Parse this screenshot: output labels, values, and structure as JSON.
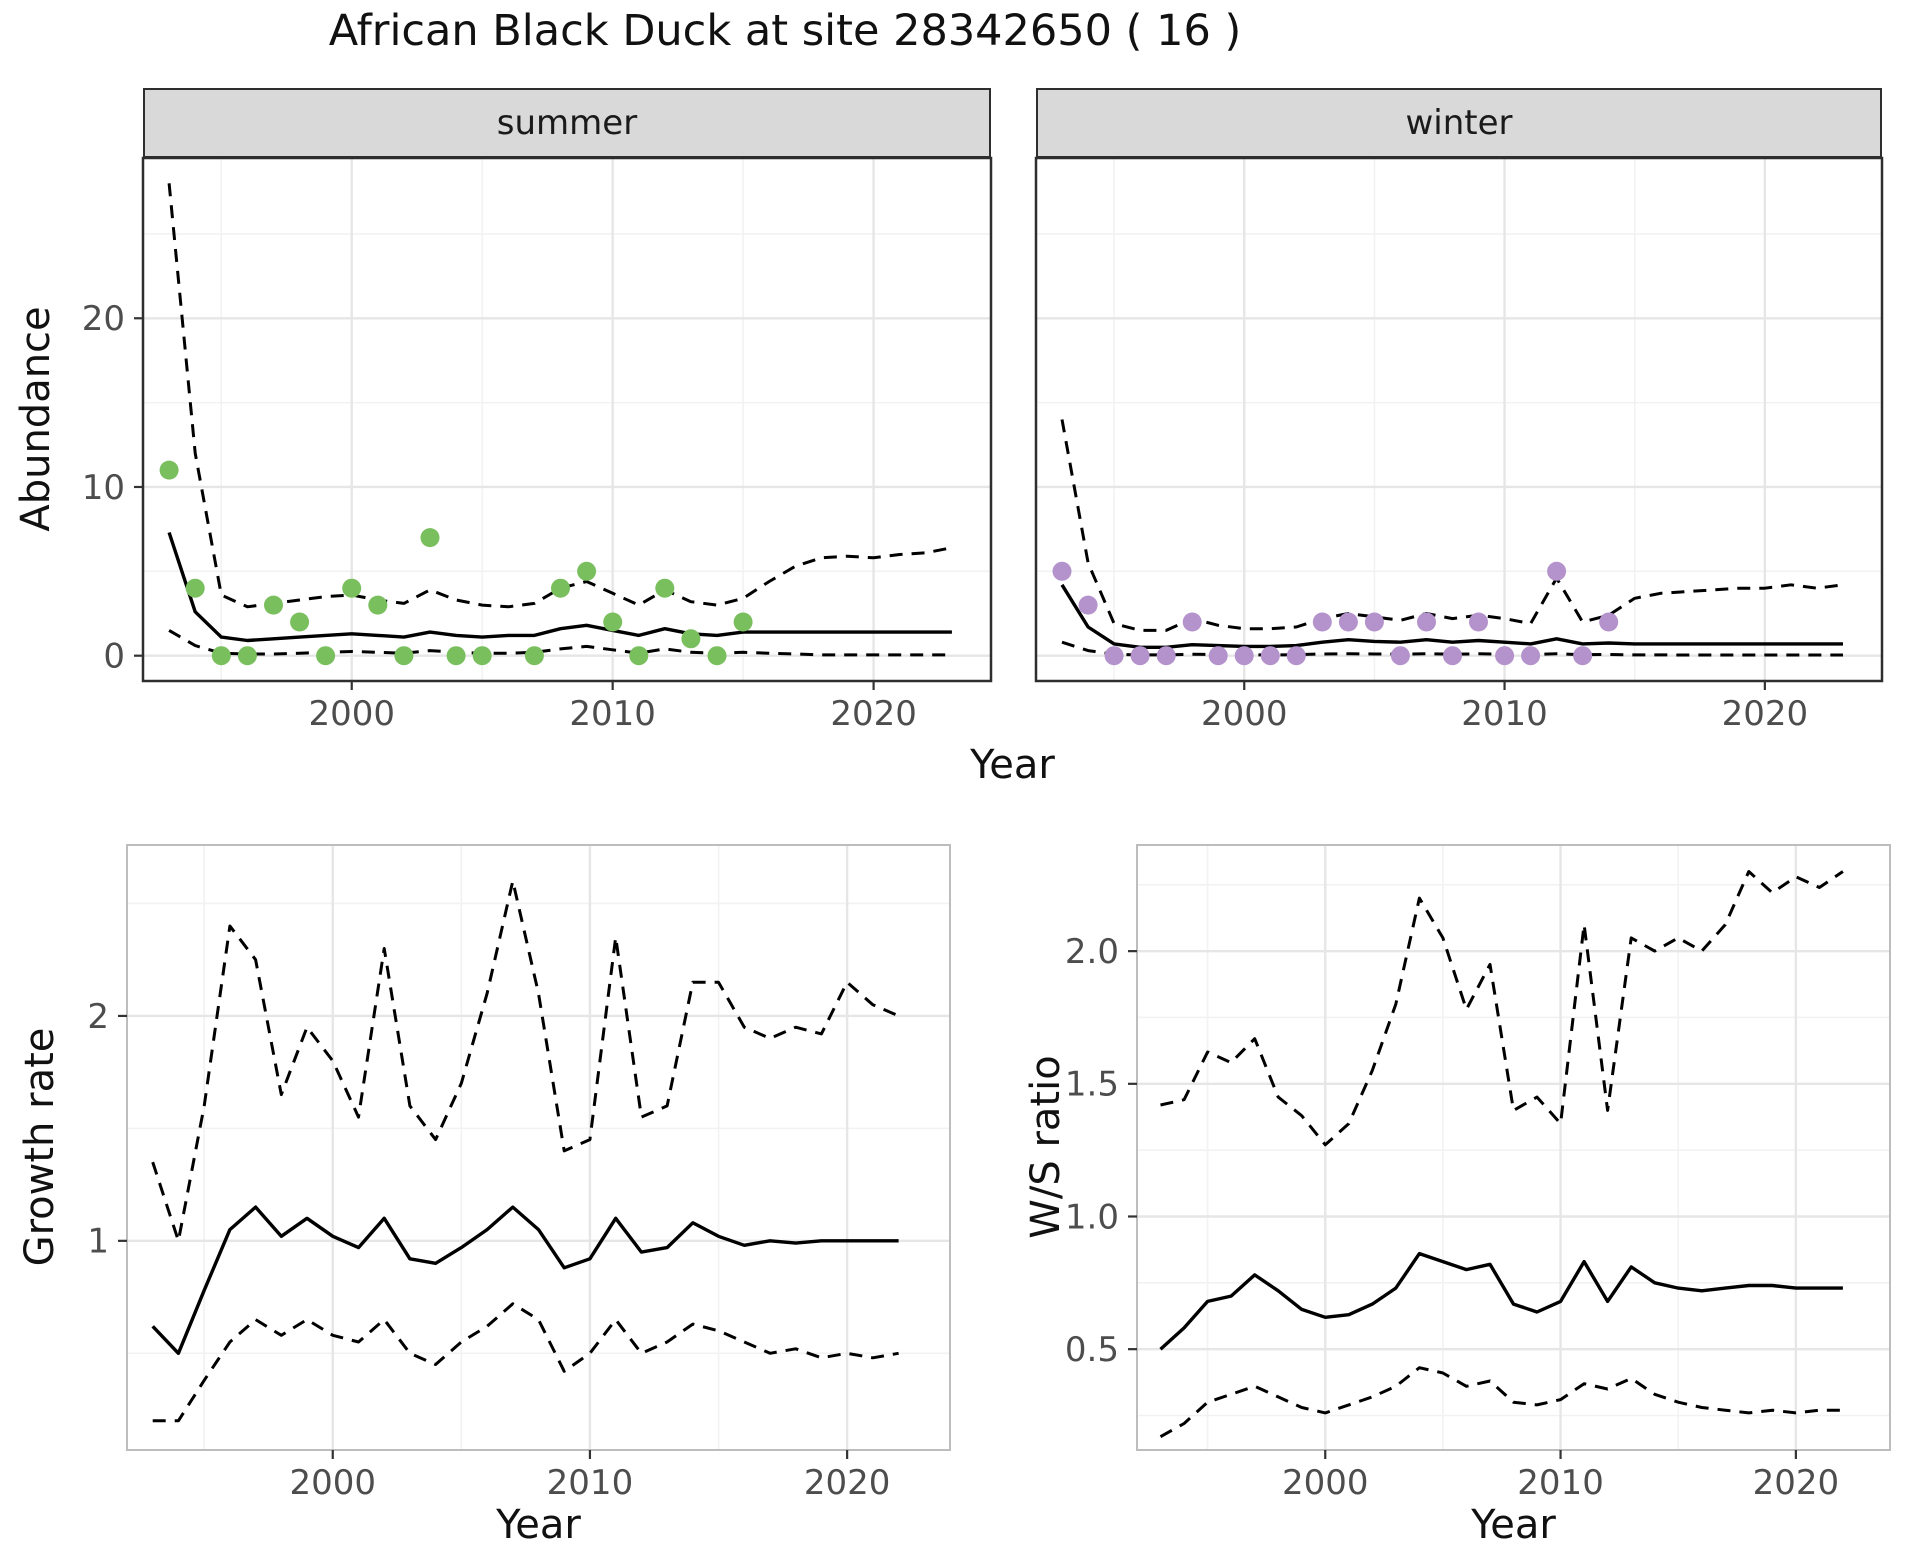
{
  "title": "African Black Duck at site 28342650 ( 16 )",
  "colors": {
    "summer_points": "#7abf5e",
    "winter_points": "#b492cc",
    "line": "#000000",
    "strip_bg": "#d9d9d9",
    "grid_major": "#e6e6e6",
    "grid_minor": "#f2f2f2",
    "tick_text": "#4d4d4d"
  },
  "chart_data": [
    {
      "id": "abundance-summer",
      "type": "scatter",
      "facet": "summer",
      "xlabel": "Year",
      "ylabel": "Abundance",
      "xlim": [
        1992,
        2024.5
      ],
      "ylim": [
        -1.5,
        29.5
      ],
      "xticks": [
        2000,
        2010,
        2020
      ],
      "xtick_labels": [
        "2000",
        "2010",
        "2020"
      ],
      "yticks": [
        0,
        10,
        20
      ],
      "ytick_labels": [
        "0",
        "10",
        "20"
      ],
      "points": {
        "name": "observed-count-summer",
        "color": "#7abf5e",
        "x": [
          1993,
          1994,
          1995,
          1996,
          1997,
          1998,
          1999,
          2000,
          2001,
          2002,
          2003,
          2004,
          2005,
          2007,
          2008,
          2009,
          2010,
          2011,
          2012,
          2013,
          2014,
          2015
        ],
        "y": [
          11,
          4,
          0,
          0,
          3,
          2,
          0,
          4,
          3,
          0,
          7,
          0,
          0,
          0,
          4,
          5,
          2,
          0,
          4,
          1,
          0,
          2
        ]
      },
      "line_x": [
        1993,
        1994,
        1995,
        1996,
        1997,
        1998,
        1999,
        2000,
        2001,
        2002,
        2003,
        2004,
        2005,
        2006,
        2007,
        2008,
        2009,
        2010,
        2011,
        2012,
        2013,
        2014,
        2015,
        2016,
        2017,
        2018,
        2019,
        2020,
        2021,
        2022,
        2023
      ],
      "lines": [
        {
          "name": "model-fit",
          "dash": false,
          "y": [
            7.3,
            2.6,
            1.1,
            0.9,
            1.0,
            1.1,
            1.2,
            1.3,
            1.2,
            1.1,
            1.4,
            1.2,
            1.1,
            1.2,
            1.2,
            1.6,
            1.8,
            1.5,
            1.2,
            1.6,
            1.3,
            1.2,
            1.4,
            1.4,
            1.4,
            1.4,
            1.4,
            1.4,
            1.4,
            1.4,
            1.4
          ]
        },
        {
          "name": "upper-credible-interval",
          "dash": true,
          "y": [
            28,
            12,
            3.6,
            2.9,
            3.1,
            3.3,
            3.5,
            3.6,
            3.3,
            3.1,
            3.9,
            3.3,
            3.0,
            2.9,
            3.1,
            4.0,
            4.4,
            3.7,
            3.0,
            3.9,
            3.2,
            3.0,
            3.4,
            4.4,
            5.3,
            5.8,
            5.9,
            5.8,
            6.0,
            6.1,
            6.4
          ]
        },
        {
          "name": "lower-credible-interval",
          "dash": true,
          "y": [
            1.5,
            0.6,
            0.15,
            0.1,
            0.1,
            0.15,
            0.2,
            0.25,
            0.2,
            0.15,
            0.3,
            0.2,
            0.15,
            0.15,
            0.2,
            0.4,
            0.55,
            0.35,
            0.15,
            0.4,
            0.2,
            0.15,
            0.2,
            0.15,
            0.1,
            0.05,
            0.05,
            0.05,
            0.05,
            0.05,
            0.05
          ]
        }
      ]
    },
    {
      "id": "abundance-winter",
      "type": "scatter",
      "facet": "winter",
      "xlabel": "Year",
      "ylabel": "Abundance",
      "xlim": [
        1992,
        2024.5
      ],
      "ylim": [
        -1.5,
        29.5
      ],
      "xticks": [
        2000,
        2010,
        2020
      ],
      "xtick_labels": [
        "2000",
        "2010",
        "2020"
      ],
      "yticks": [
        0,
        10,
        20
      ],
      "ytick_labels": [
        "0",
        "10",
        "20"
      ],
      "points": {
        "name": "observed-count-winter",
        "color": "#b492cc",
        "x": [
          1993,
          1994,
          1995,
          1996,
          1997,
          1998,
          1999,
          2000,
          2001,
          2002,
          2003,
          2004,
          2005,
          2006,
          2007,
          2008,
          2009,
          2010,
          2011,
          2012,
          2013,
          2014
        ],
        "y": [
          5,
          3,
          0,
          0,
          0,
          2,
          0,
          0,
          0,
          0,
          2,
          2,
          2,
          0,
          2,
          0,
          2,
          0,
          0,
          5,
          0,
          2
        ]
      },
      "line_x": [
        1993,
        1994,
        1995,
        1996,
        1997,
        1998,
        1999,
        2000,
        2001,
        2002,
        2003,
        2004,
        2005,
        2006,
        2007,
        2008,
        2009,
        2010,
        2011,
        2012,
        2013,
        2014,
        2015,
        2016,
        2017,
        2018,
        2019,
        2020,
        2021,
        2022,
        2023
      ],
      "lines": [
        {
          "name": "model-fit",
          "dash": false,
          "y": [
            4.2,
            1.7,
            0.7,
            0.5,
            0.5,
            0.65,
            0.6,
            0.55,
            0.55,
            0.6,
            0.8,
            0.95,
            0.85,
            0.8,
            0.95,
            0.8,
            0.9,
            0.8,
            0.7,
            1.0,
            0.7,
            0.75,
            0.7,
            0.7,
            0.7,
            0.7,
            0.7,
            0.7,
            0.7,
            0.7,
            0.7
          ]
        },
        {
          "name": "upper-credible-interval",
          "dash": true,
          "y": [
            14,
            5.5,
            1.9,
            1.5,
            1.5,
            2.2,
            1.8,
            1.6,
            1.6,
            1.7,
            2.2,
            2.5,
            2.3,
            2.1,
            2.5,
            2.2,
            2.4,
            2.2,
            1.9,
            4.6,
            2.0,
            2.4,
            3.4,
            3.7,
            3.8,
            3.9,
            4.0,
            4.0,
            4.2,
            4.0,
            4.2
          ]
        },
        {
          "name": "lower-credible-interval",
          "dash": true,
          "y": [
            0.8,
            0.3,
            0.08,
            0.05,
            0.05,
            0.08,
            0.07,
            0.05,
            0.05,
            0.06,
            0.1,
            0.12,
            0.1,
            0.09,
            0.12,
            0.09,
            0.11,
            0.09,
            0.07,
            0.12,
            0.06,
            0.07,
            0.05,
            0.05,
            0.04,
            0.04,
            0.04,
            0.04,
            0.04,
            0.04,
            0.04
          ]
        }
      ]
    },
    {
      "id": "growth-rate",
      "type": "line",
      "xlabel": "Year",
      "ylabel": "Growth rate",
      "xlim": [
        1992,
        2024
      ],
      "ylim": [
        0.07,
        2.76
      ],
      "xticks": [
        2000,
        2010,
        2020
      ],
      "xtick_labels": [
        "2000",
        "2010",
        "2020"
      ],
      "yticks": [
        1,
        2
      ],
      "ytick_labels": [
        "1",
        "2"
      ],
      "line_x": [
        1993,
        1994,
        1995,
        1996,
        1997,
        1998,
        1999,
        2000,
        2001,
        2002,
        2003,
        2004,
        2005,
        2006,
        2007,
        2008,
        2009,
        2010,
        2011,
        2012,
        2013,
        2014,
        2015,
        2016,
        2017,
        2018,
        2019,
        2020,
        2021,
        2022
      ],
      "lines": [
        {
          "name": "growth-rate-fit",
          "dash": false,
          "y": [
            0.62,
            0.5,
            0.78,
            1.05,
            1.15,
            1.02,
            1.1,
            1.02,
            0.97,
            1.1,
            0.92,
            0.9,
            0.97,
            1.05,
            1.15,
            1.05,
            0.88,
            0.92,
            1.1,
            0.95,
            0.97,
            1.08,
            1.02,
            0.98,
            1.0,
            0.99,
            1.0,
            1.0,
            1.0,
            1.0
          ]
        },
        {
          "name": "upper-credible-interval",
          "dash": true,
          "y": [
            1.35,
            1.0,
            1.6,
            2.4,
            2.25,
            1.65,
            1.95,
            1.8,
            1.55,
            2.3,
            1.6,
            1.45,
            1.7,
            2.1,
            2.6,
            2.1,
            1.4,
            1.45,
            2.35,
            1.55,
            1.6,
            2.15,
            2.15,
            1.95,
            1.9,
            1.95,
            1.92,
            2.15,
            2.05,
            2.0
          ]
        },
        {
          "name": "lower-credible-interval",
          "dash": true,
          "y": [
            0.2,
            0.2,
            0.38,
            0.55,
            0.65,
            0.58,
            0.65,
            0.58,
            0.55,
            0.65,
            0.5,
            0.45,
            0.55,
            0.62,
            0.72,
            0.65,
            0.42,
            0.5,
            0.65,
            0.5,
            0.55,
            0.63,
            0.6,
            0.55,
            0.5,
            0.52,
            0.48,
            0.5,
            0.48,
            0.5
          ]
        }
      ]
    },
    {
      "id": "ws-ratio",
      "type": "line",
      "xlabel": "Year",
      "ylabel": "W/S ratio",
      "xlim": [
        1992,
        2024
      ],
      "ylim": [
        0.12,
        2.4
      ],
      "xticks": [
        2000,
        2010,
        2020
      ],
      "xtick_labels": [
        "2000",
        "2010",
        "2020"
      ],
      "yticks": [
        0.5,
        1.0,
        1.5,
        2.0
      ],
      "ytick_labels": [
        "0.5",
        "1.0",
        "1.5",
        "2.0"
      ],
      "line_x": [
        1993,
        1994,
        1995,
        1996,
        1997,
        1998,
        1999,
        2000,
        2001,
        2002,
        2003,
        2004,
        2005,
        2006,
        2007,
        2008,
        2009,
        2010,
        2011,
        2012,
        2013,
        2014,
        2015,
        2016,
        2017,
        2018,
        2019,
        2020,
        2021,
        2022
      ],
      "lines": [
        {
          "name": "ws-ratio-fit",
          "dash": false,
          "y": [
            0.5,
            0.58,
            0.68,
            0.7,
            0.78,
            0.72,
            0.65,
            0.62,
            0.63,
            0.67,
            0.73,
            0.86,
            0.83,
            0.8,
            0.82,
            0.67,
            0.64,
            0.68,
            0.83,
            0.68,
            0.81,
            0.75,
            0.73,
            0.72,
            0.73,
            0.74,
            0.74,
            0.73,
            0.73,
            0.73
          ]
        },
        {
          "name": "upper-credible-interval",
          "dash": true,
          "y": [
            1.42,
            1.44,
            1.62,
            1.58,
            1.67,
            1.45,
            1.38,
            1.27,
            1.35,
            1.55,
            1.8,
            2.2,
            2.05,
            1.78,
            1.95,
            1.4,
            1.45,
            1.35,
            2.1,
            1.4,
            2.05,
            2.0,
            2.05,
            2.0,
            2.1,
            2.3,
            2.22,
            2.28,
            2.24,
            2.3
          ]
        },
        {
          "name": "lower-credible-interval",
          "dash": true,
          "y": [
            0.17,
            0.22,
            0.3,
            0.33,
            0.36,
            0.32,
            0.28,
            0.26,
            0.29,
            0.32,
            0.36,
            0.43,
            0.41,
            0.36,
            0.38,
            0.3,
            0.29,
            0.31,
            0.37,
            0.35,
            0.39,
            0.33,
            0.3,
            0.28,
            0.27,
            0.26,
            0.27,
            0.26,
            0.27,
            0.27
          ]
        }
      ]
    }
  ]
}
